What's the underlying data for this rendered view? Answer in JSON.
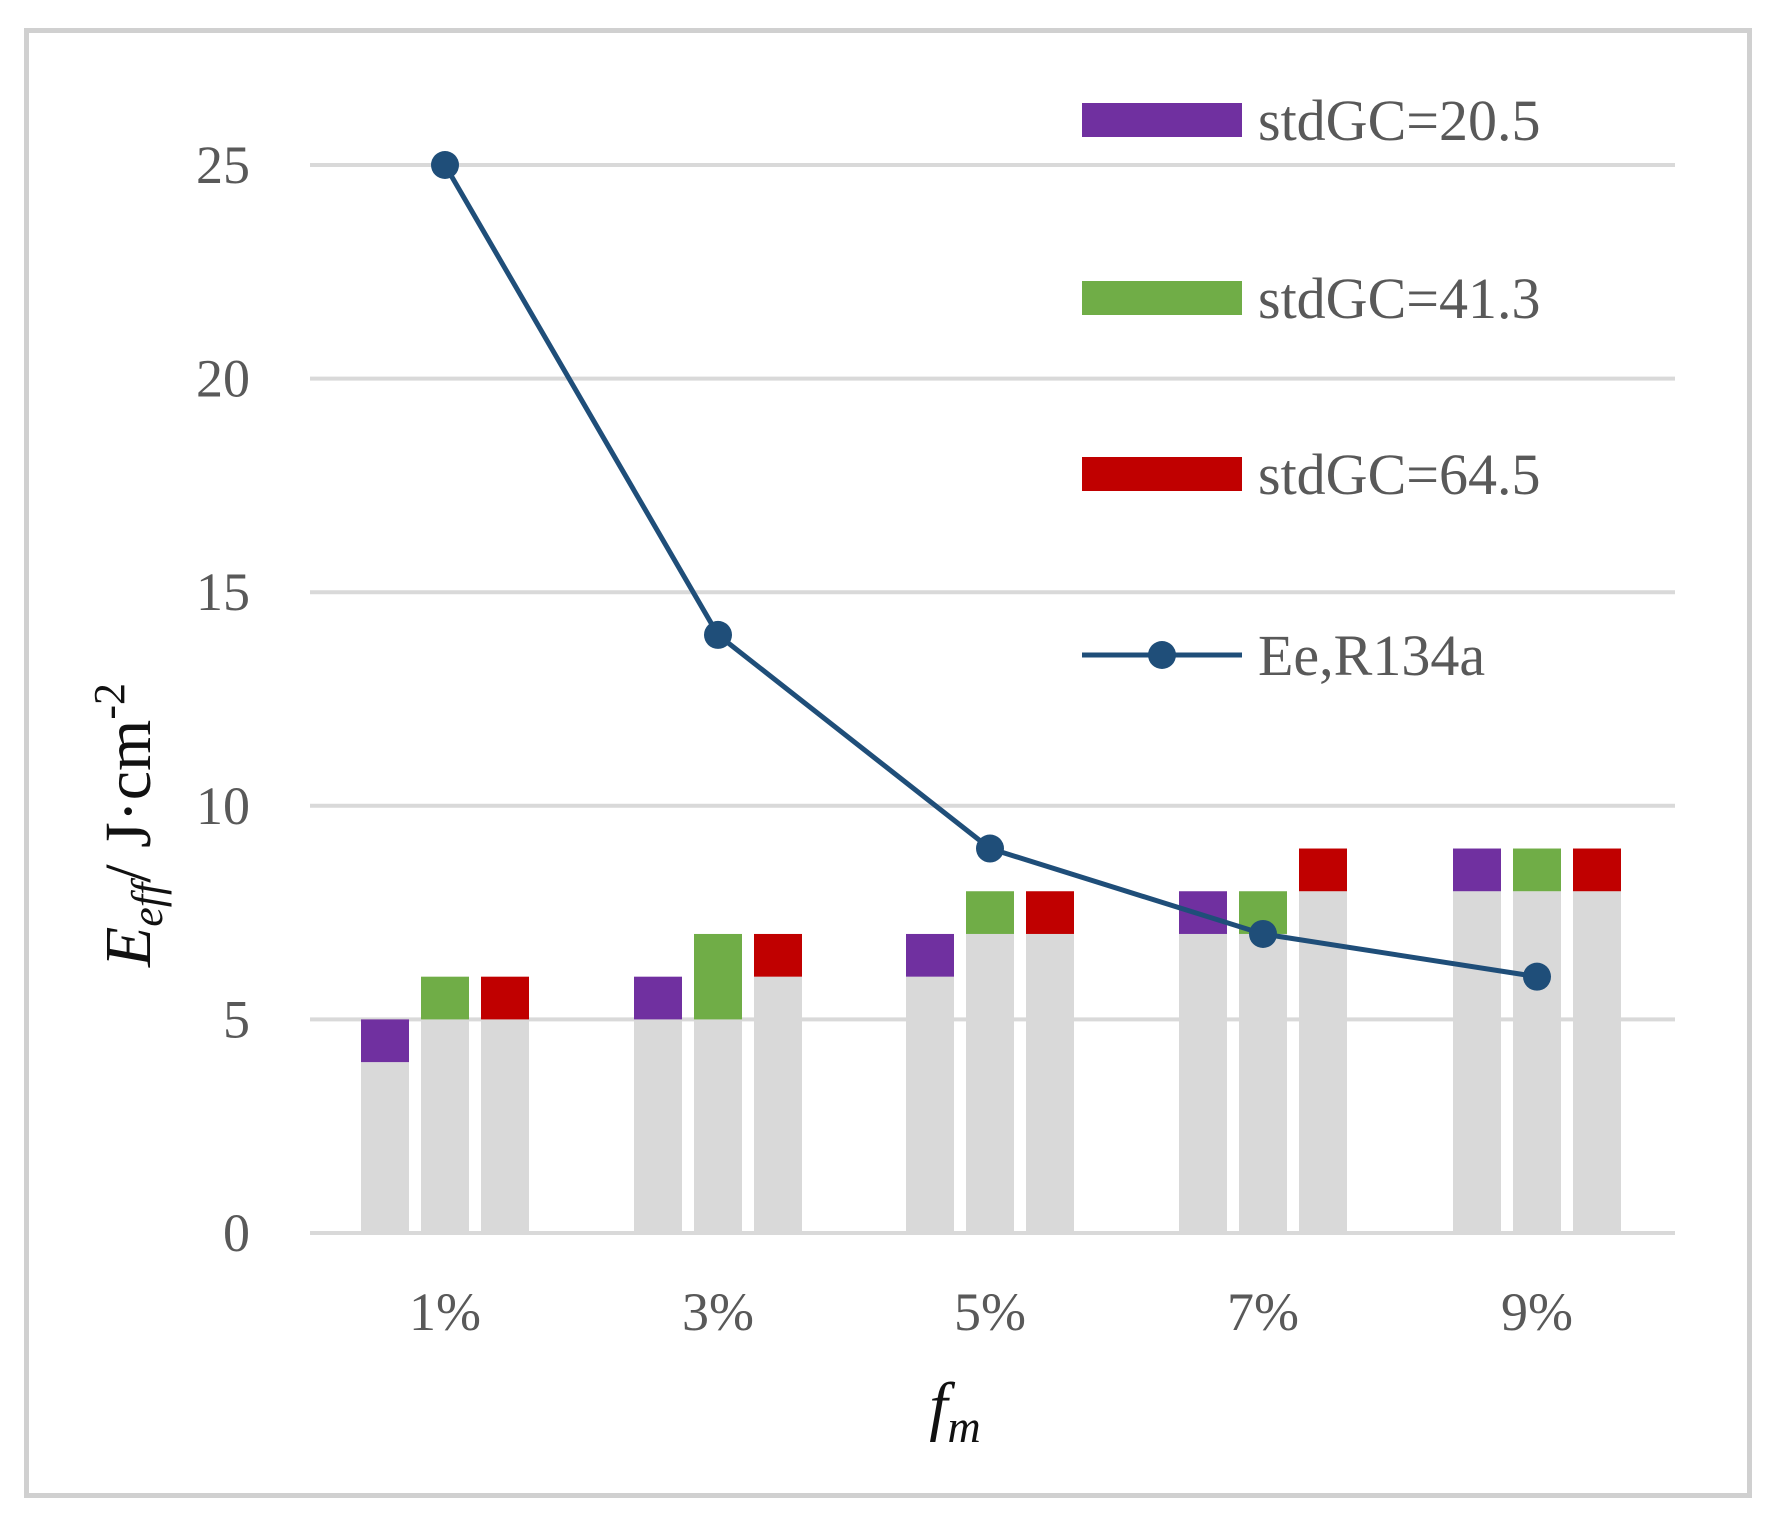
{
  "chart_data": {
    "type": "bar",
    "title": "",
    "xlabel_main": "f",
    "xlabel_sub": "m",
    "ylabel_main": "E",
    "ylabel_sub": "eff",
    "ylabel_unit": "/ J·cm",
    "ylabel_sup": "-2",
    "categories": [
      "1%",
      "3%",
      "5%",
      "7%",
      "9%"
    ],
    "yticks": [
      "0",
      "5",
      "10",
      "15",
      "20",
      "25"
    ],
    "ylim": [
      0,
      28
    ],
    "grid": true,
    "legend_position": "top-right",
    "base_color": "#d9d9d9",
    "series": [
      {
        "name": "stdGC=20.5",
        "color": "#7030a0",
        "low": [
          4,
          5,
          6,
          7,
          8
        ],
        "high": [
          5,
          6,
          7,
          8,
          9
        ]
      },
      {
        "name": "stdGC=41.3",
        "color": "#70ad47",
        "low": [
          5,
          5,
          7,
          7,
          8
        ],
        "high": [
          6,
          7,
          8,
          8,
          9
        ]
      },
      {
        "name": "stdGC=64.5",
        "color": "#c00000",
        "low": [
          5,
          6,
          7,
          8,
          8
        ],
        "high": [
          6,
          7,
          8,
          9,
          9
        ]
      }
    ],
    "line_series": {
      "name": "Ee,R134a",
      "color": "#1f4e79",
      "values": [
        25,
        14,
        9,
        7,
        6
      ]
    }
  }
}
